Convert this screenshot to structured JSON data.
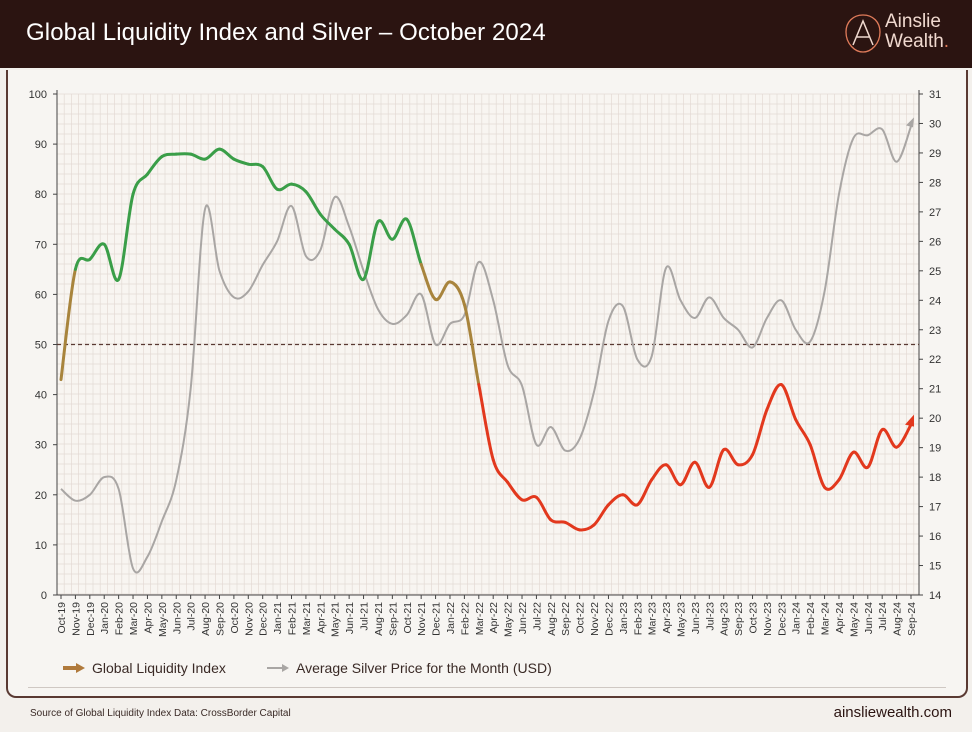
{
  "header": {
    "title": "Global Liquidity Index and Silver – October 2024"
  },
  "logo": {
    "line1": "Ainslie",
    "line2": "Wealth",
    "dot": "."
  },
  "footer": {
    "source": "Source of Global Liquidity Index Data: CrossBorder Capital",
    "site": "ainsliewealth.com"
  },
  "colors": {
    "header_bg": "#2b1411",
    "gli_high": "#3a9e48",
    "gli_mid": "#a8843c",
    "gli_low": "#e2381d",
    "silver": "#a9a6a4",
    "reference_line": "#5a3a33"
  },
  "chart_data": {
    "type": "line",
    "title": "Global Liquidity Index and Silver – October 2024",
    "xlabel": "",
    "ylabel": "",
    "y2label": "",
    "ylim": [
      0,
      100
    ],
    "y2lim": [
      14,
      31
    ],
    "yticks": [
      0,
      10,
      20,
      30,
      40,
      50,
      60,
      70,
      80,
      90,
      100
    ],
    "y2ticks": [
      14,
      15,
      16,
      17,
      18,
      19,
      20,
      21,
      22,
      23,
      24,
      25,
      26,
      27,
      28,
      29,
      30,
      31
    ],
    "grid": true,
    "legend_position": "bottom",
    "reference_line": {
      "axis": "left",
      "value": 50,
      "style": "dashed"
    },
    "categories": [
      "Oct-19",
      "Nov-19",
      "Dec-19",
      "Jan-20",
      "Feb-20",
      "Mar-20",
      "Apr-20",
      "May-20",
      "Jun-20",
      "Jul-20",
      "Aug-20",
      "Sep-20",
      "Oct-20",
      "Nov-20",
      "Dec-20",
      "Jan-21",
      "Feb-21",
      "Mar-21",
      "Apr-21",
      "May-21",
      "Jun-21",
      "Jul-21",
      "Aug-21",
      "Sep-21",
      "Oct-21",
      "Nov-21",
      "Dec-21",
      "Jan-22",
      "Feb-22",
      "Mar-22",
      "Apr-22",
      "May-22",
      "Jun-22",
      "Jul-22",
      "Aug-22",
      "Sep-22",
      "Oct-22",
      "Nov-22",
      "Dec-22",
      "Jan-23",
      "Feb-23",
      "Mar-23",
      "Apr-23",
      "May-23",
      "Jun-23",
      "Jul-23",
      "Aug-23",
      "Sep-23",
      "Oct-23",
      "Nov-23",
      "Dec-23",
      "Jan-24",
      "Feb-24",
      "Mar-24",
      "Apr-24",
      "May-24",
      "Jun-24",
      "Jul-24",
      "Aug-24",
      "Sep-24"
    ],
    "series": [
      {
        "name": "Global Liquidity Index",
        "axis": "left",
        "values": [
          43,
          65,
          67,
          70,
          63,
          80,
          84,
          87.5,
          88,
          88,
          87,
          89,
          87,
          86,
          85.5,
          81,
          82,
          80.5,
          76,
          73,
          70,
          63,
          74.5,
          71,
          75,
          66,
          59,
          62.5,
          58,
          42,
          27,
          22.5,
          19,
          19.5,
          15,
          14.5,
          13,
          14,
          18,
          20,
          18,
          23,
          26,
          22,
          26.5,
          21.5,
          29,
          26,
          28,
          37,
          42,
          35,
          30,
          21.5,
          23,
          28.5,
          25.5,
          33,
          29.5,
          34
        ]
      },
      {
        "name": "Average Silver Price for the Month (USD)",
        "axis": "right",
        "values": [
          17.6,
          17.2,
          17.4,
          18.0,
          17.6,
          14.9,
          15.3,
          16.5,
          17.9,
          21.0,
          27.1,
          25.0,
          24.1,
          24.3,
          25.2,
          26.0,
          27.2,
          25.5,
          25.7,
          27.5,
          26.5,
          25.0,
          23.7,
          23.2,
          23.5,
          24.2,
          22.5,
          23.2,
          23.5,
          25.3,
          24.0,
          21.8,
          21.1,
          19.1,
          19.7,
          18.9,
          19.3,
          20.9,
          23.3,
          23.8,
          22.0,
          22.1,
          25.1,
          24.0,
          23.4,
          24.1,
          23.4,
          23.0,
          22.4,
          23.4,
          24.0,
          23.0,
          22.6,
          24.3,
          27.6,
          29.5,
          29.6,
          29.8,
          28.7,
          29.9
        ]
      }
    ]
  }
}
